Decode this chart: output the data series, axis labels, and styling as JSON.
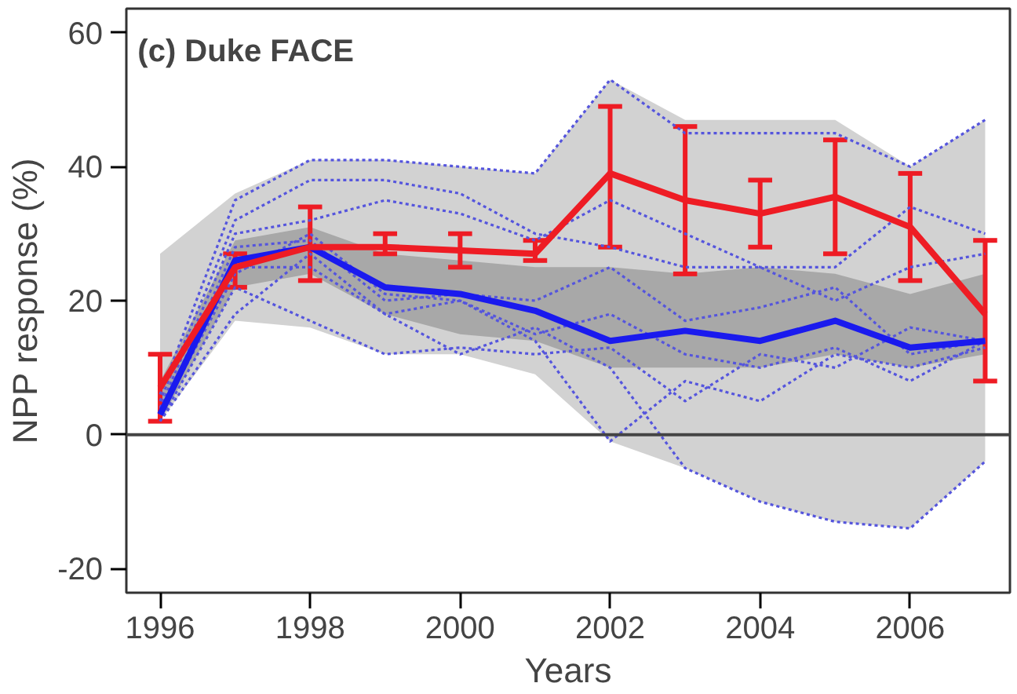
{
  "chart_data": {
    "type": "line",
    "xlabel": "Years",
    "ylabel": "NPP response (%)",
    "annotations": [
      "(c) Duke FACE"
    ],
    "x": [
      1996,
      1997,
      1998,
      1999,
      2000,
      2001,
      2002,
      2003,
      2004,
      2005,
      2006,
      2007
    ],
    "xlim": [
      1995.55,
      2007.33
    ],
    "ylim": [
      -23.6,
      63.6
    ],
    "xticks": [
      1996,
      1998,
      2000,
      2002,
      2004,
      2006
    ],
    "yticks": [
      -20,
      0,
      20,
      40,
      60
    ],
    "grid": false,
    "ref_lines": [
      {
        "axis": "y",
        "value": 0,
        "color": "#444444"
      }
    ],
    "series": [
      {
        "line_style": "dotted",
        "color": "#5555dd",
        "values": [
          6,
          35,
          41,
          41,
          40,
          39,
          53,
          45,
          45,
          45,
          40,
          47
        ]
      },
      {
        "line_style": "dotted",
        "color": "#5555dd",
        "values": [
          5,
          32,
          38,
          38,
          36,
          30,
          28,
          25,
          25,
          20,
          25,
          27
        ]
      },
      {
        "line_style": "dotted",
        "color": "#5555dd",
        "values": [
          4,
          30,
          32,
          35,
          33,
          29,
          35,
          30,
          25,
          25,
          34,
          30
        ]
      },
      {
        "line_style": "dotted",
        "color": "#5555dd",
        "values": [
          3,
          28,
          29,
          20,
          21,
          20,
          25,
          17,
          19,
          22,
          12,
          14
        ]
      },
      {
        "line_style": "dotted",
        "color": "#5555dd",
        "values": [
          3,
          25,
          25,
          18,
          20,
          14,
          -1,
          8,
          5,
          12,
          10,
          13
        ]
      },
      {
        "line_style": "dotted",
        "color": "#5555dd",
        "values": [
          2,
          22,
          17,
          12,
          13,
          12,
          13,
          5,
          12,
          10,
          16,
          14
        ]
      },
      {
        "line_style": "dotted",
        "color": "#5555dd",
        "values": [
          2,
          18,
          27,
          18,
          12,
          16,
          10,
          -5,
          -10,
          -13,
          -14,
          -4
        ]
      },
      {
        "line_style": "dotted",
        "color": "#5555dd",
        "values": [
          3,
          24,
          30,
          21,
          20,
          15,
          18,
          12,
          10,
          13,
          8,
          14
        ],
        "lower": [
          2,
          17,
          16,
          12,
          12,
          9,
          -1,
          -5,
          -10,
          -13,
          -14,
          -4
        ],
        "upper": [
          27,
          36,
          41,
          41,
          40,
          39,
          53,
          47,
          47,
          47,
          40,
          47
        ]
      },
      {
        "line_style": "solid",
        "color": "#1a1aee",
        "values": [
          3,
          26,
          28,
          22,
          21,
          18.5,
          14,
          15.5,
          14,
          17,
          13,
          14
        ],
        "lower": [
          2,
          22,
          24,
          18,
          15,
          14,
          10,
          10,
          10,
          12,
          10,
          12
        ],
        "upper": [
          8,
          29,
          31,
          27,
          26,
          25,
          25,
          24,
          25,
          24,
          21,
          24
        ]
      },
      {
        "line_style": "solid",
        "color": "#ee1c24",
        "values": [
          7,
          25,
          28,
          28,
          27.5,
          27,
          39,
          35,
          33,
          35.5,
          31,
          18
        ],
        "errors": [
          [
            2,
            12
          ],
          [
            22,
            27
          ],
          [
            23,
            34
          ],
          [
            27,
            30
          ],
          [
            25,
            30
          ],
          [
            26,
            29
          ],
          [
            28,
            49
          ],
          [
            24,
            46
          ],
          [
            28,
            38
          ],
          [
            27,
            44
          ],
          [
            23,
            39
          ],
          [
            8,
            29
          ]
        ]
      }
    ]
  }
}
